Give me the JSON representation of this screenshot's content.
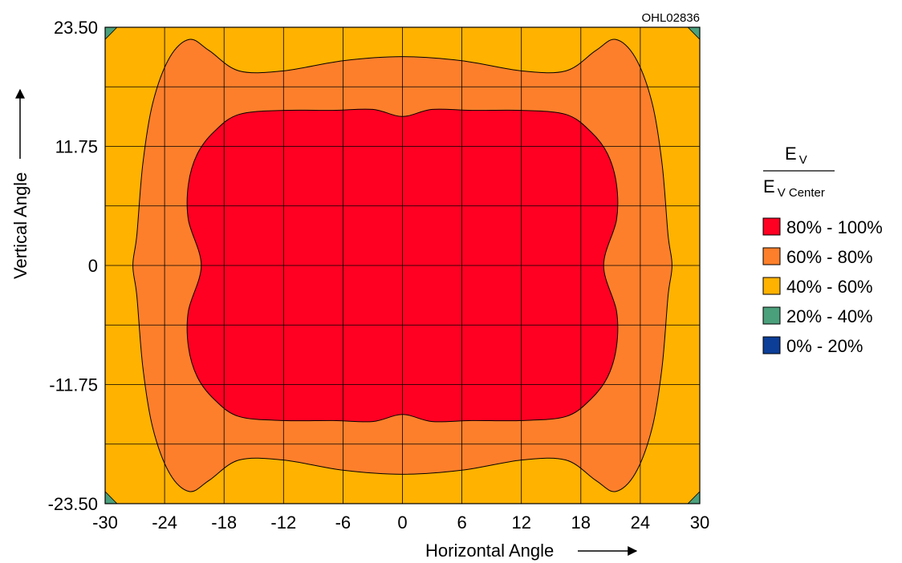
{
  "drawing_id": "OHL02836",
  "chart_data": {
    "type": "heatmap",
    "title": "",
    "xlabel": "Horizontal Angle",
    "ylabel": "Vertical Angle",
    "xlim": [
      -30,
      30
    ],
    "ylim": [
      -23.5,
      23.5
    ],
    "x_ticks": [
      "-30",
      "-24",
      "-18",
      "-12",
      "-6",
      "0",
      "6",
      "12",
      "18",
      "24",
      "30"
    ],
    "x_tick_values": [
      -30,
      -24,
      -18,
      -12,
      -6,
      0,
      6,
      12,
      18,
      24,
      30
    ],
    "y_ticks": [
      "23.50",
      "11.75",
      "0",
      "-11.75",
      "-23.50"
    ],
    "y_tick_values": [
      23.5,
      11.75,
      0,
      -11.75,
      -23.5
    ],
    "grid": true,
    "grid_x_values": [
      -30,
      -24,
      -18,
      -12,
      -6,
      0,
      6,
      12,
      18,
      24,
      30
    ],
    "grid_y_values": [
      23.5,
      17.625,
      11.75,
      5.875,
      0,
      -5.875,
      -11.75,
      -17.625,
      -23.5
    ],
    "legend_position": "right",
    "legend_title": {
      "numerator": "E",
      "numerator_sub": "V",
      "denominator": "E",
      "denominator_sub": "V Center"
    },
    "legend": [
      {
        "label": "80% - 100%",
        "color": "#ff0022"
      },
      {
        "label": "60% - 80%",
        "color": "#fe7f2b"
      },
      {
        "label": "40% - 60%",
        "color": "#ffb200"
      },
      {
        "label": "20% - 40%",
        "color": "#4ba07c"
      },
      {
        "label": "0% - 20%",
        "color": "#0c3e98"
      }
    ],
    "background_level": "40% - 60%",
    "corner_level": "20% - 40%",
    "corner_size": [
      1.2,
      1.2
    ],
    "contours": [
      {
        "level": "60% - 80%",
        "color": "#fe7f2b",
        "points": [
          [
            0,
            20.6
          ],
          [
            6,
            20.2
          ],
          [
            12,
            19.2
          ],
          [
            16.5,
            19.2
          ],
          [
            19.5,
            21.2
          ],
          [
            21.5,
            22.3
          ],
          [
            23.5,
            20.5
          ],
          [
            25.2,
            16
          ],
          [
            26.2,
            10
          ],
          [
            26.8,
            3
          ],
          [
            27.2,
            0
          ],
          [
            26.8,
            -3
          ],
          [
            26.2,
            -10
          ],
          [
            25.2,
            -16
          ],
          [
            23.5,
            -20.5
          ],
          [
            21.5,
            -22.3
          ],
          [
            19.5,
            -21.2
          ],
          [
            16.5,
            -19.2
          ],
          [
            12,
            -19.2
          ],
          [
            6,
            -20.2
          ],
          [
            0,
            -20.6
          ],
          [
            -6,
            -20.2
          ],
          [
            -12,
            -19.2
          ],
          [
            -16.5,
            -19.2
          ],
          [
            -19.5,
            -21.2
          ],
          [
            -21.5,
            -22.3
          ],
          [
            -23.5,
            -20.5
          ],
          [
            -25.2,
            -16
          ],
          [
            -26.2,
            -10
          ],
          [
            -26.8,
            -3
          ],
          [
            -27.2,
            0
          ],
          [
            -26.8,
            3
          ],
          [
            -26.2,
            10
          ],
          [
            -25.2,
            16
          ],
          [
            -23.5,
            20.5
          ],
          [
            -21.5,
            22.3
          ],
          [
            -19.5,
            21.2
          ],
          [
            -16.5,
            19.2
          ],
          [
            -12,
            19.2
          ],
          [
            -6,
            20.2
          ]
        ]
      },
      {
        "level": "80% - 100%",
        "color": "#ff0022",
        "points": [
          [
            0,
            14.7
          ],
          [
            3,
            15.4
          ],
          [
            7,
            15.3
          ],
          [
            12,
            15.3
          ],
          [
            16.5,
            14.9
          ],
          [
            19,
            13.2
          ],
          [
            20.7,
            11
          ],
          [
            21.6,
            8
          ],
          [
            21.6,
            4.5
          ],
          [
            20.3,
            0
          ],
          [
            21.6,
            -4.5
          ],
          [
            21.6,
            -8
          ],
          [
            20.7,
            -11
          ],
          [
            19,
            -13.2
          ],
          [
            16.5,
            -14.9
          ],
          [
            12,
            -15.3
          ],
          [
            7,
            -15.3
          ],
          [
            3,
            -15.4
          ],
          [
            0,
            -14.7
          ],
          [
            -3,
            -15.4
          ],
          [
            -7,
            -15.3
          ],
          [
            -12,
            -15.3
          ],
          [
            -16.5,
            -14.9
          ],
          [
            -19,
            -13.2
          ],
          [
            -20.7,
            -11
          ],
          [
            -21.6,
            -8
          ],
          [
            -21.6,
            -4.5
          ],
          [
            -20.3,
            0
          ],
          [
            -21.6,
            4.5
          ],
          [
            -21.6,
            8
          ],
          [
            -20.7,
            11
          ],
          [
            -19,
            13.2
          ],
          [
            -16.5,
            14.9
          ],
          [
            -12,
            15.3
          ],
          [
            -7,
            15.3
          ],
          [
            -3,
            15.4
          ]
        ]
      }
    ]
  }
}
